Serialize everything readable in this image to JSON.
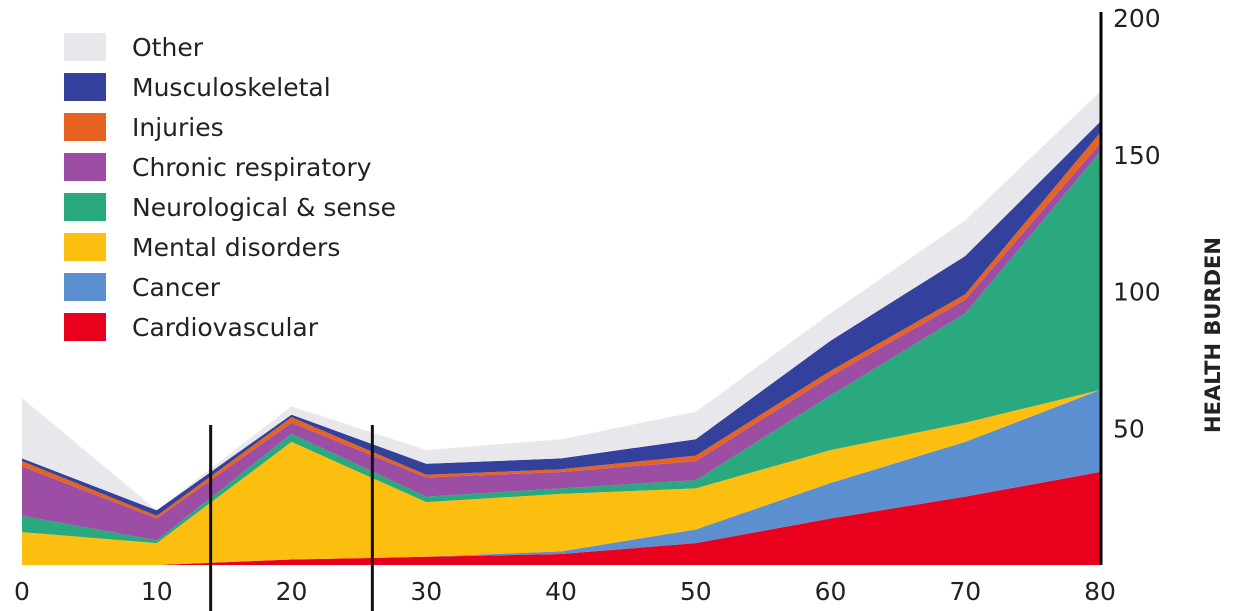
{
  "chart_data": {
    "type": "area",
    "stacked": true,
    "x": [
      0,
      10,
      20,
      30,
      40,
      50,
      60,
      70,
      80
    ],
    "xticks": [
      "0",
      "10",
      "20",
      "30",
      "40",
      "50",
      "60",
      "70",
      "80"
    ],
    "ylabel": "HEALTH BURDEN",
    "yticks": [
      "50",
      "100",
      "150",
      "200"
    ],
    "ylim": [
      0,
      200
    ],
    "y_axis_side": "right",
    "legend_position": "top-left",
    "vertical_markers": [
      14,
      26
    ],
    "series": [
      {
        "name": "Cardiovascular",
        "color": "#e8001c",
        "values": [
          0,
          0,
          2,
          3,
          4,
          8,
          17,
          25,
          34
        ]
      },
      {
        "name": "Cancer",
        "color": "#5b8fd0",
        "values": [
          0,
          0,
          0,
          0,
          1,
          5,
          13,
          20,
          30
        ]
      },
      {
        "name": "Mental disorders",
        "color": "#fdbf0f",
        "values": [
          12,
          8,
          43,
          20,
          21,
          15,
          12,
          7,
          0
        ]
      },
      {
        "name": "Neurological & sense",
        "color": "#2aa97f",
        "values": [
          6,
          1,
          3,
          2,
          2,
          3,
          20,
          40,
          87
        ]
      },
      {
        "name": "Chronic respiratory",
        "color": "#9b4ea4",
        "values": [
          18,
          8,
          4,
          7,
          6,
          7,
          7,
          5,
          3
        ]
      },
      {
        "name": "Injuries",
        "color": "#e66322",
        "values": [
          2,
          1,
          2,
          1,
          1,
          2,
          2,
          2,
          4
        ]
      },
      {
        "name": "Musculoskeletal",
        "color": "#34419c",
        "values": [
          1,
          2,
          1,
          4,
          4,
          6,
          11,
          14,
          4
        ]
      },
      {
        "name": "Other",
        "color": "#e8e8ec",
        "values": [
          22,
          0,
          3,
          5,
          7,
          10,
          10,
          13,
          11
        ]
      }
    ]
  }
}
